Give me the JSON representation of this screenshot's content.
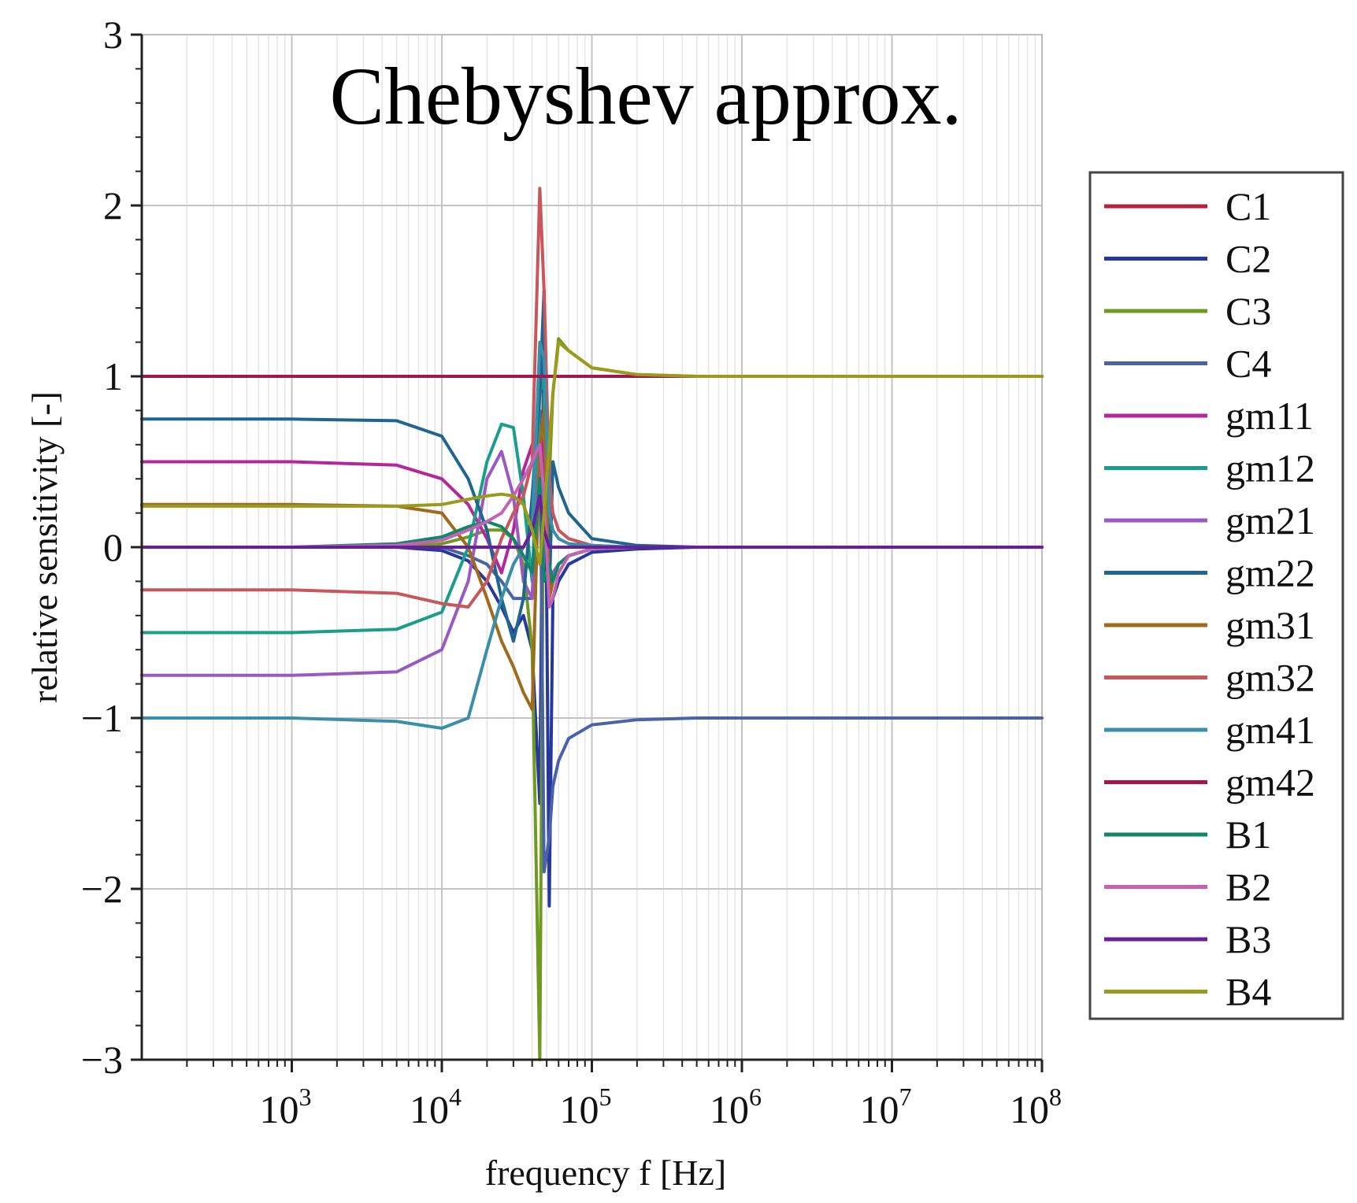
{
  "chart_data": {
    "type": "line",
    "title": "Chebyshev approx.",
    "xlabel": "frequency f [Hz]",
    "ylabel": "relative sensitivity [-]",
    "xscale": "log",
    "xlim": [
      100,
      100000000
    ],
    "ylim": [
      -3,
      3
    ],
    "grid": true,
    "legend_position": "right",
    "x_ticks": [
      {
        "base": "10",
        "exp": "3",
        "value": 1000
      },
      {
        "base": "10",
        "exp": "4",
        "value": 10000
      },
      {
        "base": "10",
        "exp": "5",
        "value": 100000
      },
      {
        "base": "10",
        "exp": "6",
        "value": 1000000
      },
      {
        "base": "10",
        "exp": "7",
        "value": 10000000
      },
      {
        "base": "10",
        "exp": "8",
        "value": 100000000
      }
    ],
    "y_ticks": [
      {
        "label": "3",
        "value": 3
      },
      {
        "label": "2",
        "value": 2
      },
      {
        "label": "1",
        "value": 1
      },
      {
        "label": "0",
        "value": 0
      },
      {
        "label": "−1",
        "value": -1
      },
      {
        "label": "−2",
        "value": -2
      },
      {
        "label": "−3",
        "value": -3
      }
    ],
    "series": [
      {
        "name": "C1",
        "color": "#b5223c",
        "x": [
          100,
          1000,
          5000,
          10000,
          15000,
          20000,
          25000,
          30000,
          35000,
          40000,
          45000,
          48000,
          52000,
          55000,
          60000,
          70000,
          100000,
          200000,
          500000,
          100000000
        ],
        "y": [
          1,
          1,
          1,
          1,
          1,
          1,
          1,
          1,
          1,
          1,
          1,
          1,
          1,
          1,
          1,
          1,
          1,
          1,
          1,
          1
        ]
      },
      {
        "name": "C2",
        "color": "#27379b",
        "x": [
          100,
          1000,
          5000,
          10000,
          15000,
          20000,
          25000,
          30000,
          35000,
          40000,
          45000,
          48000,
          52000,
          55000,
          60000,
          70000,
          100000,
          200000,
          500000,
          100000000
        ],
        "y": [
          0,
          0,
          0,
          -0.02,
          -0.08,
          -0.2,
          -0.35,
          -0.5,
          -0.4,
          -0.6,
          -1.5,
          1.5,
          -2.1,
          -0.3,
          -0.2,
          -0.1,
          -0.03,
          -0.01,
          0,
          0
        ]
      },
      {
        "name": "C3",
        "color": "#6e9a1f",
        "x": [
          100,
          1000,
          5000,
          10000,
          15000,
          20000,
          25000,
          30000,
          35000,
          40000,
          45000,
          48000,
          52000,
          55000,
          60000,
          70000,
          100000,
          200000,
          500000,
          100000000
        ],
        "y": [
          0,
          0,
          0,
          0.02,
          0.06,
          0.1,
          0.1,
          0.05,
          -0.1,
          -0.6,
          -3.0,
          0.9,
          0.4,
          0.9,
          1.22,
          1.15,
          1.05,
          1.01,
          1.0,
          1.0
        ]
      },
      {
        "name": "C4",
        "color": "#4a62a8",
        "x": [
          100,
          1000,
          5000,
          10000,
          15000,
          20000,
          25000,
          30000,
          35000,
          40000,
          45000,
          48000,
          52000,
          55000,
          60000,
          70000,
          100000,
          200000,
          500000,
          100000000
        ],
        "y": [
          0,
          0,
          0,
          0,
          -0.05,
          -0.1,
          -0.2,
          -0.3,
          -0.3,
          -0.3,
          0.8,
          -1.9,
          -1.7,
          -1.4,
          -1.25,
          -1.12,
          -1.04,
          -1.01,
          -1.0,
          -1.0
        ]
      },
      {
        "name": "gm11",
        "color": "#b5269a",
        "x": [
          100,
          1000,
          5000,
          10000,
          15000,
          20000,
          25000,
          30000,
          35000,
          40000,
          45000,
          48000,
          52000,
          55000,
          60000,
          70000,
          100000,
          200000,
          500000,
          100000000
        ],
        "y": [
          0.5,
          0.5,
          0.48,
          0.4,
          0.25,
          0.05,
          -0.15,
          0.1,
          0.45,
          0.6,
          0.7,
          0.5,
          -0.2,
          -0.15,
          -0.1,
          -0.05,
          -0.01,
          0,
          0,
          0
        ]
      },
      {
        "name": "gm12",
        "color": "#1a9e8c",
        "x": [
          100,
          1000,
          5000,
          10000,
          15000,
          20000,
          25000,
          30000,
          35000,
          40000,
          45000,
          48000,
          52000,
          55000,
          60000,
          70000,
          100000,
          200000,
          500000,
          100000000
        ],
        "y": [
          -0.5,
          -0.5,
          -0.48,
          -0.38,
          0.0,
          0.5,
          0.72,
          0.7,
          0.3,
          -0.2,
          0.9,
          1.0,
          -0.3,
          -0.2,
          -0.1,
          -0.05,
          -0.01,
          0,
          0,
          0
        ]
      },
      {
        "name": "gm21",
        "color": "#9a59c0",
        "x": [
          100,
          1000,
          5000,
          10000,
          15000,
          20000,
          25000,
          30000,
          35000,
          40000,
          45000,
          48000,
          52000,
          55000,
          60000,
          70000,
          100000,
          200000,
          500000,
          100000000
        ],
        "y": [
          -0.75,
          -0.75,
          -0.73,
          -0.6,
          -0.2,
          0.4,
          0.56,
          0.3,
          -0.2,
          -0.3,
          0.6,
          0.3,
          -0.2,
          -0.15,
          -0.1,
          -0.05,
          -0.01,
          0,
          0,
          0
        ]
      },
      {
        "name": "gm22",
        "color": "#1f6590",
        "x": [
          100,
          1000,
          5000,
          10000,
          15000,
          20000,
          25000,
          30000,
          35000,
          40000,
          45000,
          48000,
          52000,
          55000,
          60000,
          70000,
          100000,
          200000,
          500000,
          100000000
        ],
        "y": [
          0.75,
          0.75,
          0.74,
          0.65,
          0.4,
          0.1,
          -0.3,
          -0.55,
          -0.3,
          0.3,
          0.9,
          1.5,
          -0.3,
          0.5,
          0.35,
          0.2,
          0.05,
          0.01,
          0,
          0
        ]
      },
      {
        "name": "gm31",
        "color": "#a06a1c",
        "x": [
          100,
          1000,
          5000,
          10000,
          15000,
          20000,
          25000,
          30000,
          35000,
          40000,
          45000,
          48000,
          52000,
          55000,
          60000,
          70000,
          100000,
          200000,
          500000,
          100000000
        ],
        "y": [
          0.25,
          0.25,
          0.24,
          0.2,
          0.0,
          -0.3,
          -0.55,
          -0.7,
          -0.85,
          -0.95,
          0.6,
          0.8,
          -0.3,
          -0.2,
          -0.1,
          -0.05,
          -0.01,
          0,
          0,
          0
        ]
      },
      {
        "name": "gm32",
        "color": "#c8575c",
        "x": [
          100,
          1000,
          5000,
          10000,
          15000,
          20000,
          25000,
          30000,
          35000,
          40000,
          45000,
          48000,
          52000,
          55000,
          60000,
          70000,
          100000,
          200000,
          500000,
          100000000
        ],
        "y": [
          -0.25,
          -0.25,
          -0.27,
          -0.33,
          -0.35,
          -0.2,
          0.05,
          0.2,
          0.3,
          0.5,
          2.1,
          1.5,
          0.4,
          0.2,
          0.1,
          0.05,
          0.01,
          0,
          0,
          0
        ]
      },
      {
        "name": "gm41",
        "color": "#3a8fa8",
        "x": [
          100,
          1000,
          5000,
          10000,
          15000,
          20000,
          25000,
          30000,
          35000,
          40000,
          45000,
          48000,
          52000,
          55000,
          60000,
          70000,
          100000,
          200000,
          500000,
          100000000
        ],
        "y": [
          -1,
          -1,
          -1.02,
          -1.06,
          -1.0,
          -0.6,
          -0.3,
          -0.1,
          0.0,
          0.1,
          1.2,
          1.1,
          0.2,
          0.1,
          0.05,
          0.02,
          0.01,
          0,
          0,
          0
        ]
      },
      {
        "name": "gm42",
        "color": "#a3164e",
        "x": [
          100,
          1000,
          5000,
          10000,
          15000,
          20000,
          25000,
          30000,
          35000,
          40000,
          45000,
          48000,
          52000,
          55000,
          60000,
          70000,
          100000,
          200000,
          500000,
          100000000
        ],
        "y": [
          1,
          1,
          1,
          1,
          1,
          1,
          1,
          1,
          1,
          1,
          1,
          1,
          1,
          1,
          1,
          1,
          1,
          1,
          1,
          1
        ]
      },
      {
        "name": "B1",
        "color": "#11876a",
        "x": [
          100,
          1000,
          5000,
          10000,
          15000,
          20000,
          25000,
          30000,
          35000,
          40000,
          45000,
          48000,
          52000,
          55000,
          60000,
          70000,
          100000,
          200000,
          500000,
          100000000
        ],
        "y": [
          0,
          0,
          0.02,
          0.06,
          0.12,
          0.15,
          0.12,
          0.05,
          -0.05,
          -0.15,
          0.4,
          -0.2,
          -0.1,
          -0.2,
          -0.1,
          -0.05,
          -0.01,
          0,
          0,
          0
        ]
      },
      {
        "name": "B2",
        "color": "#c463b4",
        "x": [
          100,
          1000,
          5000,
          10000,
          15000,
          20000,
          25000,
          30000,
          35000,
          40000,
          45000,
          48000,
          52000,
          55000,
          60000,
          70000,
          100000,
          200000,
          500000,
          100000000
        ],
        "y": [
          0,
          0,
          0.01,
          0.04,
          0.1,
          0.15,
          0.2,
          0.3,
          0.4,
          0.5,
          0.6,
          0.3,
          -0.35,
          -0.3,
          -0.15,
          -0.05,
          -0.01,
          0,
          0,
          0
        ]
      },
      {
        "name": "B3",
        "color": "#6a1f9a",
        "x": [
          100,
          1000,
          5000,
          10000,
          15000,
          20000,
          25000,
          30000,
          35000,
          40000,
          45000,
          48000,
          52000,
          55000,
          60000,
          70000,
          100000,
          200000,
          500000,
          100000000
        ],
        "y": [
          0,
          0,
          0,
          0,
          0,
          0,
          0,
          0,
          0,
          0.1,
          0.3,
          0.1,
          0,
          0,
          0,
          0,
          0,
          0,
          0,
          0
        ]
      },
      {
        "name": "B4",
        "color": "#9a9a1c",
        "x": [
          100,
          1000,
          5000,
          10000,
          15000,
          20000,
          25000,
          30000,
          35000,
          40000,
          45000,
          48000,
          52000,
          55000,
          60000,
          70000,
          100000,
          200000,
          500000,
          100000000
        ],
        "y": [
          0.24,
          0.24,
          0.24,
          0.25,
          0.28,
          0.3,
          0.31,
          0.3,
          0.25,
          0.1,
          -0.1,
          0.2,
          0.6,
          0.9,
          1.2,
          1.15,
          1.05,
          1.01,
          1.0,
          1.0
        ]
      }
    ]
  }
}
